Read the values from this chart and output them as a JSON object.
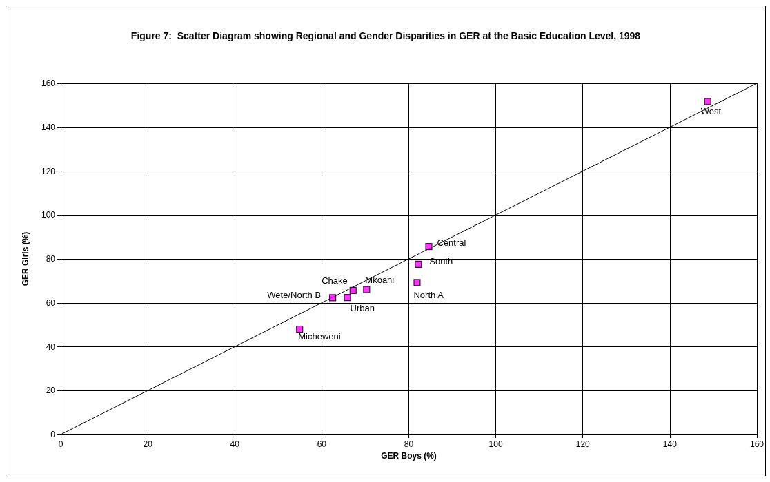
{
  "chart_data": {
    "type": "scatter",
    "title": "Figure 7:  Scatter Diagram showing Regional and Gender Disparities in GER at the Basic Education Level, 1998",
    "xlabel": "GER Boys (%)",
    "ylabel": "GER Girls (%)",
    "series": [
      {
        "color": "#ff00ff",
        "marker": "square",
        "x": [
          84.6,
          82.2,
          81.9,
          70.3,
          67.2,
          65.9,
          62.5,
          54.9,
          148.7
        ],
        "values": [
          85.6,
          77.5,
          69.2,
          66.0,
          65.6,
          62.4,
          62.3,
          48.0,
          151.7
        ]
      },
      {
        "type": "line",
        "color": "#000000",
        "marker": "none",
        "x": [
          0,
          160
        ],
        "values": [
          0,
          160
        ]
      }
    ],
    "annotations": [
      {
        "text": "Central",
        "x": 84.6,
        "y": 85.6
      },
      {
        "text": "South",
        "x": 82.2,
        "y": 77.5
      },
      {
        "text": "North A",
        "x": 81.9,
        "y": 69.2
      },
      {
        "text": "Mkoani",
        "x": 70.3,
        "y": 66.0
      },
      {
        "text": "Chake",
        "x": 67.2,
        "y": 65.6
      },
      {
        "text": "Urban",
        "x": 65.9,
        "y": 62.4
      },
      {
        "text": "Wete/North B",
        "x": 62.5,
        "y": 62.3
      },
      {
        "text": "Micheweni",
        "x": 54.9,
        "y": 48.0
      },
      {
        "text": "West",
        "x": 148.7,
        "y": 151.7
      }
    ],
    "xlim": [
      0,
      160
    ],
    "xticks": [
      0,
      20,
      40,
      60,
      80,
      100,
      120,
      140,
      160
    ],
    "ylim": [
      0,
      160
    ],
    "yticks": [
      0,
      20,
      40,
      60,
      80,
      100,
      120,
      140,
      160
    ],
    "grid": true
  }
}
